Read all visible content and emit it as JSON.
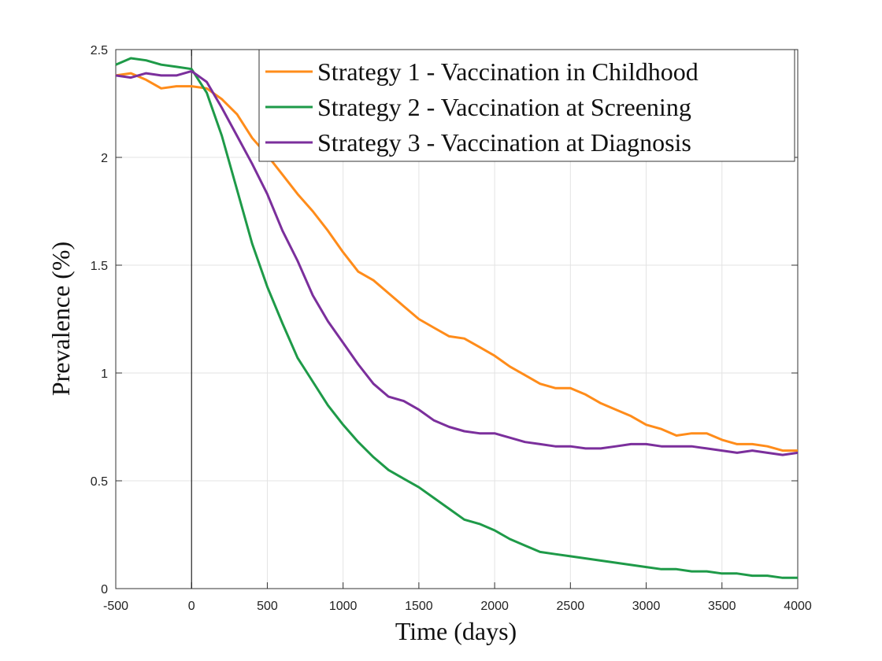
{
  "chart_data": {
    "type": "line",
    "xlabel": "Time (days)",
    "ylabel": "Prevalence (%)",
    "x": [
      -500,
      -400,
      -300,
      -200,
      -100,
      0,
      100,
      200,
      300,
      400,
      500,
      600,
      700,
      800,
      900,
      1000,
      1100,
      1200,
      1300,
      1400,
      1500,
      1600,
      1700,
      1800,
      1900,
      2000,
      2100,
      2200,
      2300,
      2400,
      2500,
      2600,
      2700,
      2800,
      2900,
      3000,
      3100,
      3200,
      3300,
      3400,
      3500,
      3600,
      3700,
      3800,
      3900,
      4000
    ],
    "series": [
      {
        "name": "Strategy 1 - Vaccination in Childhood",
        "color": "#ff8c1a",
        "values": [
          2.38,
          2.39,
          2.36,
          2.32,
          2.33,
          2.33,
          2.32,
          2.27,
          2.2,
          2.09,
          2.01,
          1.92,
          1.83,
          1.75,
          1.66,
          1.56,
          1.47,
          1.43,
          1.37,
          1.31,
          1.25,
          1.21,
          1.17,
          1.16,
          1.12,
          1.08,
          1.03,
          0.99,
          0.95,
          0.93,
          0.93,
          0.9,
          0.86,
          0.83,
          0.8,
          0.76,
          0.74,
          0.71,
          0.72,
          0.72,
          0.69,
          0.67,
          0.67,
          0.66,
          0.64,
          0.64
        ]
      },
      {
        "name": "Strategy 2 - Vaccination at Screening",
        "color": "#1e9a48",
        "values": [
          2.43,
          2.46,
          2.45,
          2.43,
          2.42,
          2.41,
          2.3,
          2.1,
          1.85,
          1.6,
          1.4,
          1.23,
          1.07,
          0.96,
          0.85,
          0.76,
          0.68,
          0.61,
          0.55,
          0.51,
          0.47,
          0.42,
          0.37,
          0.32,
          0.3,
          0.27,
          0.23,
          0.2,
          0.17,
          0.16,
          0.15,
          0.14,
          0.13,
          0.12,
          0.11,
          0.1,
          0.09,
          0.09,
          0.08,
          0.08,
          0.07,
          0.07,
          0.06,
          0.06,
          0.05,
          0.05
        ]
      },
      {
        "name": "Strategy 3 - Vaccination at Diagnosis",
        "color": "#7b2f9c",
        "values": [
          2.38,
          2.37,
          2.39,
          2.38,
          2.38,
          2.4,
          2.35,
          2.23,
          2.1,
          1.97,
          1.83,
          1.66,
          1.52,
          1.36,
          1.24,
          1.14,
          1.04,
          0.95,
          0.89,
          0.87,
          0.83,
          0.78,
          0.75,
          0.73,
          0.72,
          0.72,
          0.7,
          0.68,
          0.67,
          0.66,
          0.66,
          0.65,
          0.65,
          0.66,
          0.67,
          0.67,
          0.66,
          0.66,
          0.66,
          0.65,
          0.64,
          0.63,
          0.64,
          0.63,
          0.62,
          0.63
        ]
      }
    ],
    "xlim": [
      -500,
      4000
    ],
    "xticks": [
      -500,
      0,
      500,
      1000,
      1500,
      2000,
      2500,
      3000,
      3500,
      4000
    ],
    "ylim": [
      0,
      2.5
    ],
    "yticks": [
      0,
      0.5,
      1,
      1.5,
      2,
      2.5
    ],
    "grid": true,
    "legend": "upper right",
    "vertical_line_x": 0
  }
}
